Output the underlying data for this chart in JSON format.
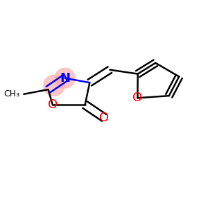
{
  "background_color": "#ffffff",
  "atom_colors": {
    "N": "#0000ff",
    "O": "#ff0000",
    "C": "#000000"
  },
  "highlight_color": "#ffaaaa",
  "highlight_alpha": 0.65,
  "bond_color": "#000000",
  "bond_width": 1.8,
  "fig_size": [
    3.0,
    3.0
  ],
  "dpi": 100,
  "xlim": [
    -0.1,
    1.15
  ],
  "ylim": [
    0.1,
    0.95
  ]
}
